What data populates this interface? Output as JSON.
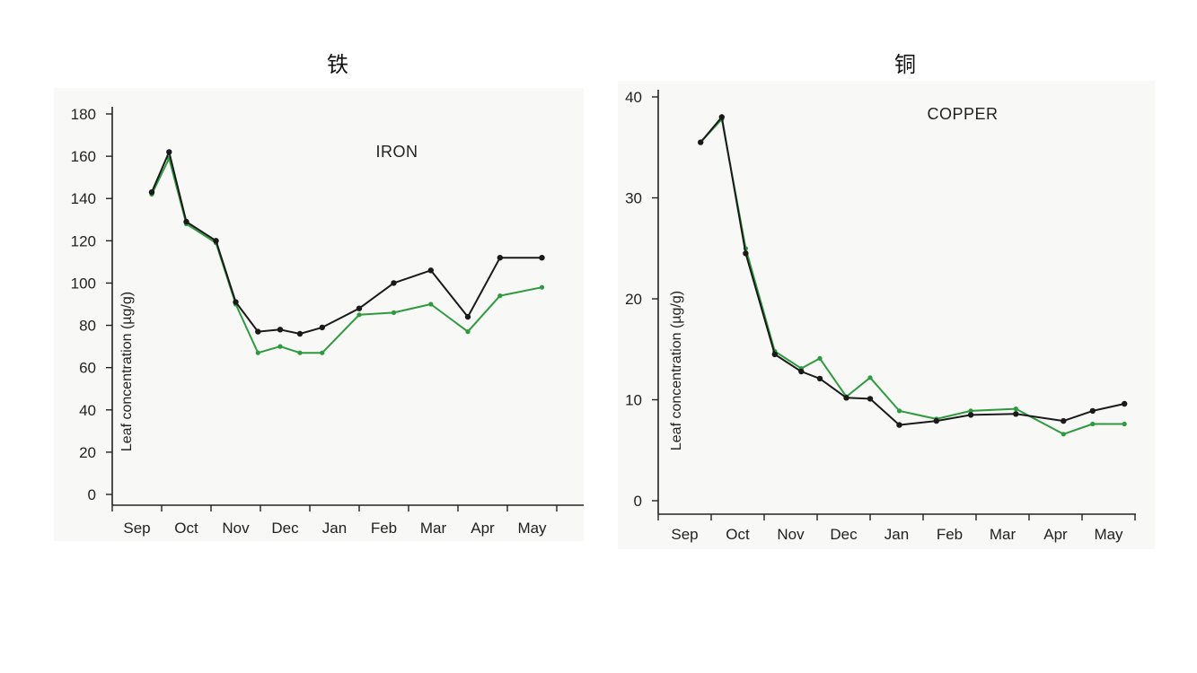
{
  "headings": {
    "left": "铁",
    "right": "铜"
  },
  "chart_data": [
    {
      "type": "line",
      "title": "IRON",
      "ylabel": "Leaf concentration (µg/g)",
      "xlabel": "",
      "ylim": [
        0,
        180
      ],
      "yticks": [
        0,
        20,
        40,
        60,
        80,
        100,
        120,
        140,
        160,
        180
      ],
      "months": [
        "Sep",
        "Oct",
        "Nov",
        "Dec",
        "Jan",
        "Feb",
        "Mar",
        "Apr",
        "May"
      ],
      "xlim": [
        0,
        9
      ],
      "series": [
        {
          "color": "#1a1a1a",
          "x": [
            0.8,
            1.15,
            1.5,
            2.1,
            2.5,
            2.95,
            3.4,
            3.8,
            4.25,
            5.0,
            5.7,
            6.45,
            7.2,
            7.85,
            8.7
          ],
          "y": [
            143,
            162,
            129,
            120,
            91,
            77,
            78,
            76,
            79,
            88,
            100,
            106,
            84,
            112,
            112
          ]
        },
        {
          "color": "#2e9a3e",
          "x": [
            0.8,
            1.15,
            1.5,
            2.1,
            2.5,
            2.95,
            3.4,
            3.8,
            4.25,
            5.0,
            5.7,
            6.45,
            7.2,
            7.85,
            8.7
          ],
          "y": [
            142,
            159,
            128,
            119,
            90,
            67,
            70,
            67,
            67,
            85,
            86,
            90,
            77,
            94,
            98
          ]
        }
      ]
    },
    {
      "type": "line",
      "title": "COPPER",
      "ylabel": "Leaf concentration (µg/g)",
      "xlabel": "",
      "ylim": [
        0,
        40
      ],
      "yticks": [
        0,
        10,
        20,
        30,
        40
      ],
      "months": [
        "Sep",
        "Oct",
        "Nov",
        "Dec",
        "Jan",
        "Feb",
        "Mar",
        "Apr",
        "May"
      ],
      "xlim": [
        0,
        9
      ],
      "series": [
        {
          "color": "#1a1a1a",
          "x": [
            0.8,
            1.2,
            1.65,
            2.2,
            2.7,
            3.05,
            3.55,
            4.0,
            4.55,
            5.25,
            5.9,
            6.75,
            7.65,
            8.2,
            8.8
          ],
          "y": [
            35.5,
            38,
            24.5,
            14.5,
            12.8,
            12.1,
            10.2,
            10.1,
            7.5,
            7.9,
            8.5,
            8.6,
            7.9,
            8.9,
            9.6
          ]
        },
        {
          "color": "#2e9a3e",
          "x": [
            0.8,
            1.2,
            1.65,
            2.2,
            2.7,
            3.05,
            3.55,
            4.0,
            4.55,
            5.25,
            5.9,
            6.75,
            7.65,
            8.2,
            8.8
          ],
          "y": [
            35.5,
            37.8,
            25,
            14.8,
            13.1,
            14.1,
            10.3,
            12.2,
            8.9,
            8.1,
            8.9,
            9.1,
            6.6,
            7.6,
            7.6
          ]
        }
      ]
    }
  ]
}
